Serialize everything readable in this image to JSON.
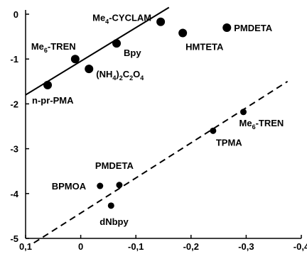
{
  "chart_data": {
    "type": "scatter",
    "title": "",
    "xlabel": "",
    "ylabel": "",
    "xlim": [
      0.1,
      -0.4
    ],
    "ylim": [
      -5,
      0
    ],
    "x_ticks": [
      0.1,
      0,
      -0.1,
      -0.2,
      -0.3,
      -0.4
    ],
    "x_tick_labels": [
      "0,1",
      "0",
      "-0,1",
      "-0,2",
      "-0,3",
      "-0,4"
    ],
    "y_ticks": [
      0,
      -1,
      -2,
      -3,
      -4,
      -5
    ],
    "y_tick_labels": [
      "0",
      "-1",
      "-2",
      "-3",
      "-4",
      "-5"
    ],
    "grid": false,
    "legend": "none",
    "series": [
      {
        "style": "solid",
        "marker_color": "#000000",
        "points": [
          {
            "x": 0.06,
            "y": -1.58,
            "label": "n-pr-PMA"
          },
          {
            "x": -0.015,
            "y": -1.22,
            "label": "(NH4)2C2O4"
          },
          {
            "x": 0.01,
            "y": -1.0,
            "label": "Me6-TREN"
          },
          {
            "x": -0.065,
            "y": -0.65,
            "label": "Bpy"
          },
          {
            "x": -0.145,
            "y": -0.17,
            "label": "Me4-CYCLAM"
          },
          {
            "x": -0.185,
            "y": -0.42,
            "label": "HMTETA"
          },
          {
            "x": -0.265,
            "y": -0.3,
            "label": "PMDETA"
          }
        ],
        "fit": {
          "x": [
            0.1,
            -0.16
          ],
          "y": [
            -1.8,
            0.15
          ]
        }
      },
      {
        "style": "dashed",
        "marker_color": "#000000",
        "points": [
          {
            "x": -0.055,
            "y": -4.27,
            "label": "dNbpy"
          },
          {
            "x": -0.035,
            "y": -3.83,
            "label": "BPMOA"
          },
          {
            "x": -0.07,
            "y": -3.81,
            "label": "PMDETA"
          },
          {
            "x": -0.24,
            "y": -2.6,
            "label": "TPMA"
          },
          {
            "x": -0.295,
            "y": -2.18,
            "label": "Me6-TREN"
          }
        ],
        "fit": {
          "x": [
            0.085,
            -0.375
          ],
          "y": [
            -5.1,
            -1.5
          ]
        }
      }
    ]
  }
}
